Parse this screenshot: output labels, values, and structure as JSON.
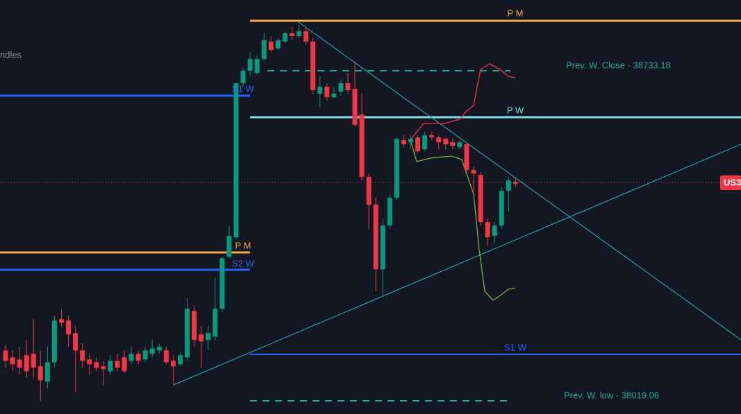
{
  "header": {
    "app_text": "ndles"
  },
  "chart_data": {
    "type": "candlestick",
    "ylim": [
      37980,
      38875
    ],
    "up_color": "#089981",
    "down_color": "#f23645",
    "price_tag": "US3",
    "annotations": [
      "P M",
      "Prev. W. Close - 38733.18",
      "S1 W",
      "P W",
      "P M",
      "S2 W",
      "S1 W",
      "Prev. W. low - 38019.06"
    ],
    "ohlc": [
      [
        38117.5,
        38129.5,
        38080,
        38095
      ],
      [
        38102.5,
        38117.5,
        38072.5,
        38087.5
      ],
      [
        38098,
        38125,
        38065,
        38080
      ],
      [
        38107,
        38140,
        38057.5,
        38072.5
      ],
      [
        38110,
        38185,
        38057.5,
        38080
      ],
      [
        38083,
        38117.5,
        38008,
        38053
      ],
      [
        38050,
        38125,
        38035,
        38092
      ],
      [
        38092,
        38192.5,
        38080,
        38182
      ],
      [
        38185,
        38207.5,
        38170,
        38177.5
      ],
      [
        38182,
        38192.5,
        38125,
        38152
      ],
      [
        38155,
        38170,
        38027.5,
        38117.5
      ],
      [
        38117.5,
        38132.5,
        38080,
        38095
      ],
      [
        38098,
        38110,
        38065,
        38087.5
      ],
      [
        38092,
        38102.5,
        38072.5,
        38080
      ],
      [
        38083,
        38095,
        38042.5,
        38077
      ],
      [
        38072.5,
        38107,
        38065,
        38095
      ],
      [
        38095,
        38110,
        38072.5,
        38080
      ],
      [
        38102.5,
        38117.5,
        38068,
        38072.5
      ],
      [
        38095,
        38125,
        38087.5,
        38110
      ],
      [
        38110,
        38117.5,
        38087.5,
        38095
      ],
      [
        38098,
        38125,
        38092,
        38117.5
      ],
      [
        38110,
        38140,
        38102.5,
        38122
      ],
      [
        38117.5,
        38132.5,
        38110,
        38125
      ],
      [
        38117.5,
        38125,
        38087.5,
        38092
      ],
      [
        38095,
        38107,
        38042.5,
        38083
      ],
      [
        38087.5,
        38113,
        38083,
        38107
      ],
      [
        38102.5,
        38230,
        38095,
        38207.5
      ],
      [
        38203,
        38215,
        38125,
        38140
      ],
      [
        38152,
        38170,
        38080,
        38137
      ],
      [
        38140,
        38170,
        38117.5,
        38155
      ],
      [
        38147.5,
        38275,
        38140,
        38207.5
      ],
      [
        38207.5,
        38320,
        38200,
        38317
      ],
      [
        38320,
        38387.5,
        38317,
        38365
      ],
      [
        38362,
        38698,
        38357.5,
        38695
      ],
      [
        38695,
        38728,
        38687.5,
        38722
      ],
      [
        38722,
        38762.5,
        38710,
        38747.5
      ],
      [
        38717.5,
        38755,
        38713,
        38747.5
      ],
      [
        38747.5,
        38803,
        38743,
        38788
      ],
      [
        38785,
        38797,
        38762.5,
        38767
      ],
      [
        38770,
        38792.5,
        38767,
        38788
      ],
      [
        38785,
        38807.5,
        38782,
        38803
      ],
      [
        38803,
        38818,
        38788,
        38797
      ],
      [
        38797,
        38822.5,
        38792.5,
        38807.5
      ],
      [
        38807.5,
        38815,
        38777.5,
        38785
      ],
      [
        38785,
        38792.5,
        38672.5,
        38680
      ],
      [
        38672.5,
        38710,
        38642.5,
        38687.5
      ],
      [
        38687.5,
        38695,
        38657.5,
        38665
      ],
      [
        38665,
        38687.5,
        38662,
        38672.5
      ],
      [
        38677,
        38702.5,
        38669.5,
        38695
      ],
      [
        38695,
        38717.5,
        38672.5,
        38680
      ],
      [
        38683,
        38743,
        38602,
        38605
      ],
      [
        38627.5,
        38672.5,
        38485,
        38492.5
      ],
      [
        38492.5,
        38500,
        38380,
        38432.5
      ],
      [
        38432.5,
        38447.5,
        38245,
        38293
      ],
      [
        38293,
        38402.5,
        38237.5,
        38387.5
      ],
      [
        38387.5,
        38455,
        38380,
        38447.5
      ],
      [
        38447.5,
        38578,
        38443,
        38575
      ],
      [
        38572,
        38582.5,
        38557,
        38563
      ],
      [
        38567.5,
        38582.5,
        38552.5,
        38575
      ],
      [
        38578,
        38582.5,
        38545,
        38548
      ],
      [
        38552.5,
        38590,
        38548,
        38582.5
      ],
      [
        38582.5,
        38590,
        38572,
        38578
      ],
      [
        38578,
        38582.5,
        38552.5,
        38567.5
      ],
      [
        38575,
        38578,
        38552.5,
        38563
      ],
      [
        38567.5,
        38575,
        38552.5,
        38560
      ],
      [
        38557,
        38572,
        38552.5,
        38567.5
      ],
      [
        38563,
        38567.5,
        38500,
        38507.5
      ],
      [
        38507.5,
        38515,
        38462.5,
        38500
      ],
      [
        38497,
        38503,
        38387.5,
        38395
      ],
      [
        38395,
        38402.5,
        38342.5,
        38362
      ],
      [
        38365,
        38395,
        38350,
        38387.5
      ],
      [
        38387.5,
        38470,
        38380,
        38462.5
      ],
      [
        38462.5,
        38492.5,
        38417.5,
        38485
      ],
      [
        38482,
        38492.5,
        38470,
        38477.5
      ]
    ]
  }
}
